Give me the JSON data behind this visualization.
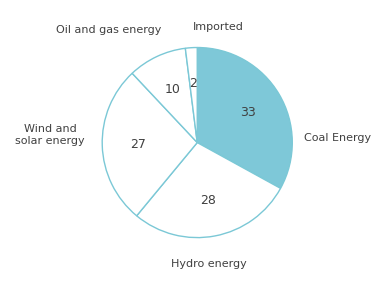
{
  "labels": [
    "Coal Energy",
    "Hydro energy",
    "Wind and\nsolar energy",
    "Oil and gas energy",
    "Imported"
  ],
  "values": [
    33,
    28,
    27,
    10,
    2
  ],
  "colors": [
    "#7ec8d8",
    "#ffffff",
    "#ffffff",
    "#ffffff",
    "#ffffff"
  ],
  "edge_color": "#7bc8d6",
  "text_color": "#404040",
  "background_color": "#ffffff",
  "startangle": 90,
  "counterclock": false,
  "value_fontsize": 9,
  "label_fontsize": 8,
  "figsize": [
    3.83,
    2.97
  ],
  "dpi": 100
}
